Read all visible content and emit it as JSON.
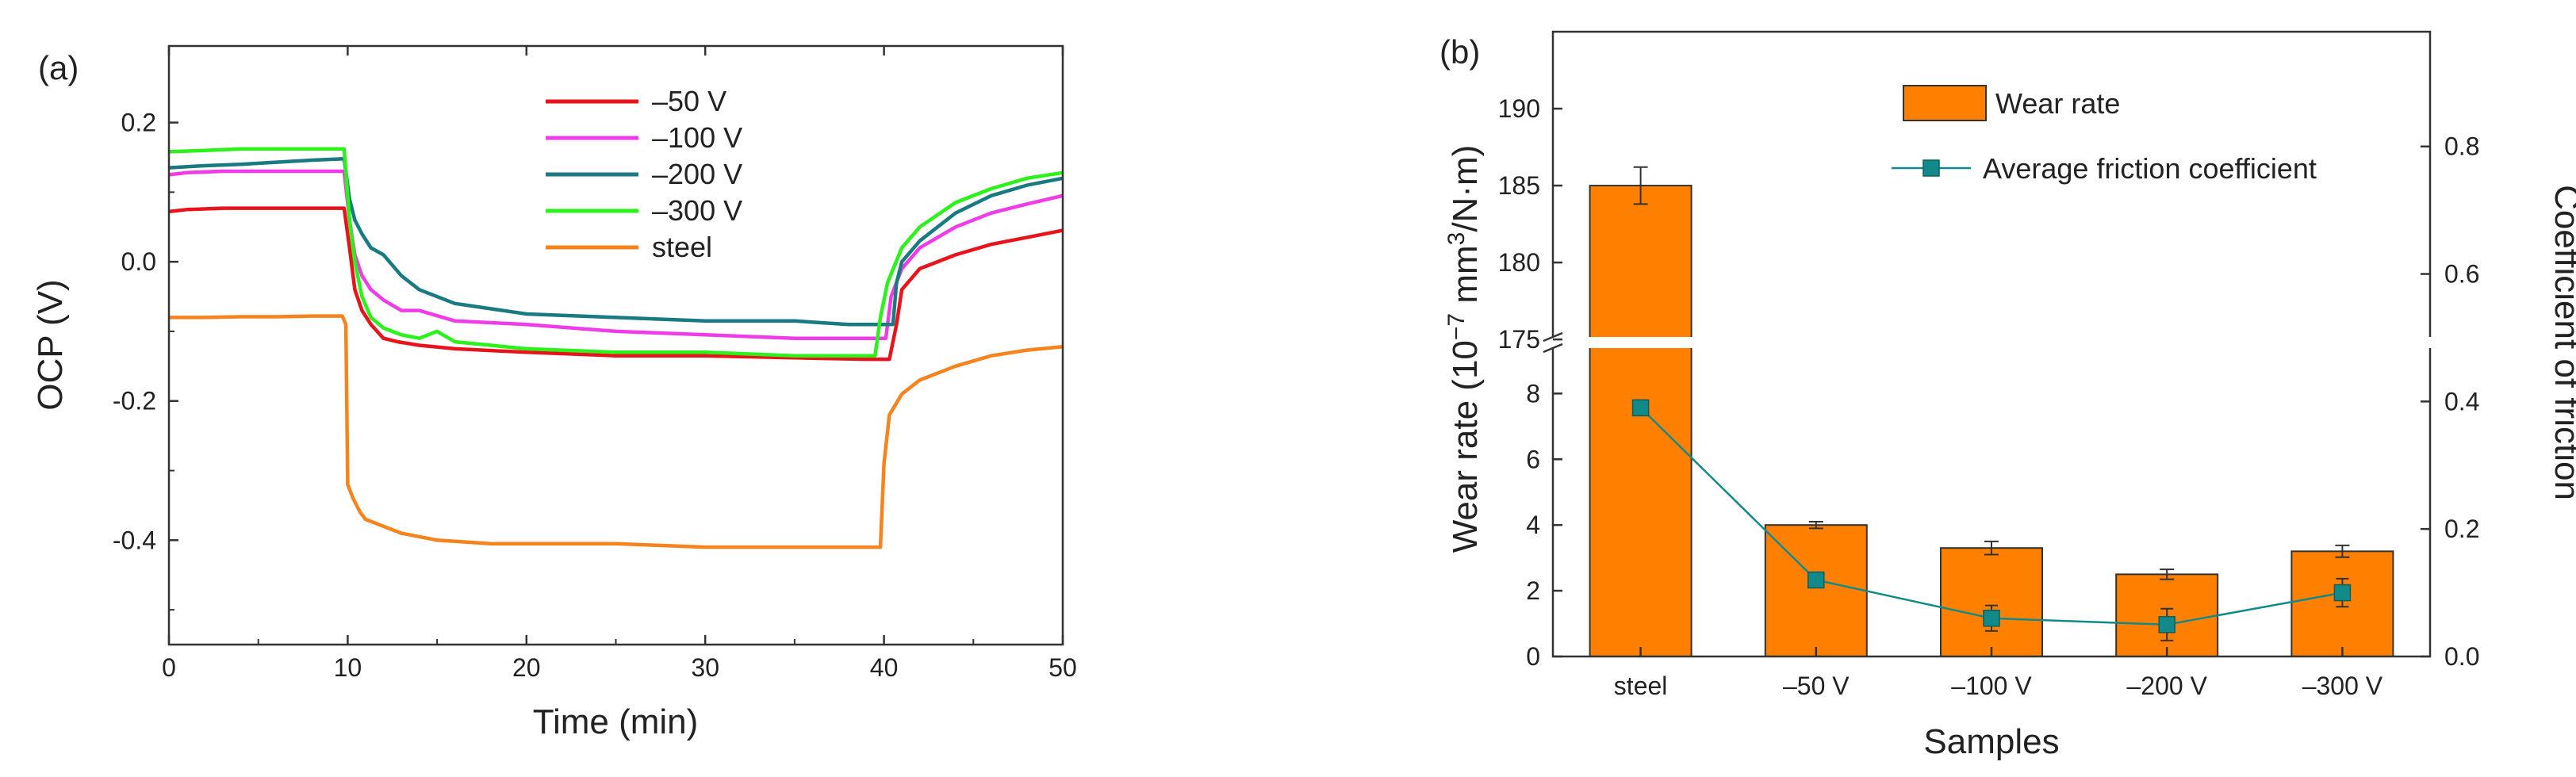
{
  "chart_data": [
    {
      "type": "line",
      "panel_label": "(a)",
      "title": "",
      "xlabel": "Time (min)",
      "ylabel": "OCP (V)",
      "xlim": [
        0,
        50
      ],
      "ylim": [
        -0.55,
        0.31
      ],
      "xticks": [
        0,
        10,
        20,
        30,
        40,
        50
      ],
      "xtick_labels": [
        "0",
        "10",
        "20",
        "30",
        "40",
        "50"
      ],
      "yticks": [
        0.2,
        0.0,
        -0.2,
        -0.4
      ],
      "ytick_labels": [
        "0.2",
        "0.0",
        "-0.2",
        "-0.4"
      ],
      "legend_position": "top-center",
      "series": [
        {
          "name": "–50 V",
          "color": "#e8131b",
          "x": [
            0,
            1,
            3,
            6,
            9,
            9.8,
            10.1,
            10.4,
            10.8,
            11.3,
            12,
            12.8,
            14,
            16,
            20,
            25,
            30,
            35,
            39,
            40.3,
            40.7,
            41,
            42,
            44,
            46,
            48,
            50
          ],
          "y": [
            0.072,
            0.075,
            0.077,
            0.077,
            0.077,
            0.077,
            0.02,
            -0.04,
            -0.07,
            -0.09,
            -0.11,
            -0.115,
            -0.12,
            -0.125,
            -0.13,
            -0.135,
            -0.135,
            -0.138,
            -0.14,
            -0.14,
            -0.09,
            -0.04,
            -0.01,
            0.01,
            0.025,
            0.035,
            0.045
          ]
        },
        {
          "name": "–100 V",
          "color": "#f03ce8",
          "x": [
            0,
            1,
            3,
            6,
            9,
            9.8,
            10.1,
            10.4,
            10.8,
            11.3,
            12,
            13,
            14,
            16,
            20,
            25,
            30,
            35,
            39.5,
            40.1,
            40.4,
            41,
            42,
            44,
            46,
            48,
            50
          ],
          "y": [
            0.125,
            0.128,
            0.13,
            0.13,
            0.13,
            0.13,
            0.06,
            0.01,
            -0.02,
            -0.04,
            -0.055,
            -0.07,
            -0.07,
            -0.085,
            -0.09,
            -0.1,
            -0.105,
            -0.11,
            -0.11,
            -0.11,
            -0.05,
            -0.01,
            0.02,
            0.05,
            0.07,
            0.083,
            0.095
          ]
        },
        {
          "name": "–200 V",
          "color": "#1a7a82",
          "x": [
            0,
            2,
            4,
            6,
            8,
            9.8,
            10.1,
            10.4,
            10.8,
            11.3,
            12,
            12.5,
            13,
            14,
            16,
            20,
            25,
            30,
            35,
            38,
            40.5,
            40.7,
            41,
            42,
            44,
            46,
            48,
            50
          ],
          "y": [
            0.135,
            0.138,
            0.14,
            0.143,
            0.146,
            0.148,
            0.09,
            0.06,
            0.04,
            0.02,
            0.01,
            -0.005,
            -0.02,
            -0.04,
            -0.06,
            -0.075,
            -0.08,
            -0.085,
            -0.085,
            -0.09,
            -0.09,
            -0.03,
            0.0,
            0.03,
            0.07,
            0.095,
            0.11,
            0.12
          ]
        },
        {
          "name": "–300 V",
          "color": "#2bf21a",
          "x": [
            0,
            2,
            4,
            6,
            8,
            9.8,
            10.1,
            10.4,
            10.8,
            11.3,
            12,
            13,
            14,
            15,
            16,
            18,
            20,
            25,
            30,
            35,
            39.5,
            39.8,
            40.2,
            41,
            42,
            44,
            46,
            48,
            50
          ],
          "y": [
            0.158,
            0.16,
            0.162,
            0.162,
            0.162,
            0.162,
            0.06,
            0.0,
            -0.05,
            -0.08,
            -0.095,
            -0.105,
            -0.11,
            -0.1,
            -0.115,
            -0.12,
            -0.125,
            -0.13,
            -0.13,
            -0.135,
            -0.135,
            -0.08,
            -0.03,
            0.02,
            0.05,
            0.085,
            0.105,
            0.12,
            0.128
          ]
        },
        {
          "name": "steel",
          "color": "#f5841f",
          "x": [
            0,
            2,
            4,
            6,
            8,
            9.7,
            9.9,
            10.0,
            10.3,
            10.7,
            11,
            12,
            13,
            15,
            18,
            20,
            25,
            30,
            35,
            39.5,
            39.8,
            40.0,
            40.3,
            41,
            42,
            44,
            46,
            48,
            50
          ],
          "y": [
            -0.08,
            -0.08,
            -0.079,
            -0.079,
            -0.078,
            -0.078,
            -0.09,
            -0.32,
            -0.34,
            -0.36,
            -0.37,
            -0.38,
            -0.39,
            -0.4,
            -0.405,
            -0.405,
            -0.405,
            -0.41,
            -0.41,
            -0.41,
            -0.41,
            -0.29,
            -0.22,
            -0.19,
            -0.17,
            -0.15,
            -0.135,
            -0.127,
            -0.122
          ]
        }
      ]
    },
    {
      "type": "bar",
      "panel_label": "(b)",
      "title": "",
      "xlabel": "Samples",
      "ylabel_left_prefix": "Wear rate (10",
      "ylabel_left_exp1": "−7",
      "ylabel_left_mid": " mm",
      "ylabel_left_exp2": "3",
      "ylabel_left_suffix": "/N·m)",
      "ylabel_right": "Coefficient of friction",
      "categories": [
        "steel",
        "–50 V",
        "–100 V",
        "–200 V",
        "–300 V"
      ],
      "y_break": {
        "lower_range": [
          0,
          9.6
        ],
        "upper_range": [
          174.8,
          195
        ]
      },
      "left_lower_ticks": [
        0,
        2,
        4,
        6,
        8
      ],
      "left_lower_tick_labels": [
        "0",
        "2",
        "4",
        "6",
        "8"
      ],
      "left_upper_ticks": [
        175,
        180,
        185,
        190
      ],
      "left_upper_tick_labels": [
        "175",
        "180",
        "185",
        "190"
      ],
      "right_ylim": [
        0,
        0.98
      ],
      "right_ticks": [
        0,
        0.2,
        0.4,
        0.6,
        0.8
      ],
      "right_tick_labels": [
        "0.0",
        "0.2",
        "0.4",
        "0.6",
        "0.8"
      ],
      "legend_position": "top-center",
      "series": [
        {
          "name": "Wear rate",
          "kind": "bar",
          "axis": "left",
          "color": "#ff8000",
          "values": [
            185,
            4.0,
            3.3,
            2.5,
            3.2
          ],
          "errors": [
            1.2,
            0.1,
            0.2,
            0.15,
            0.18
          ]
        },
        {
          "name": "Average friction coefficient",
          "kind": "line",
          "axis": "right",
          "color": "#138a8a",
          "values": [
            0.39,
            0.12,
            0.06,
            0.05,
            0.1
          ],
          "errors": [
            0.012,
            0.01,
            0.02,
            0.025,
            0.022
          ]
        }
      ]
    }
  ]
}
